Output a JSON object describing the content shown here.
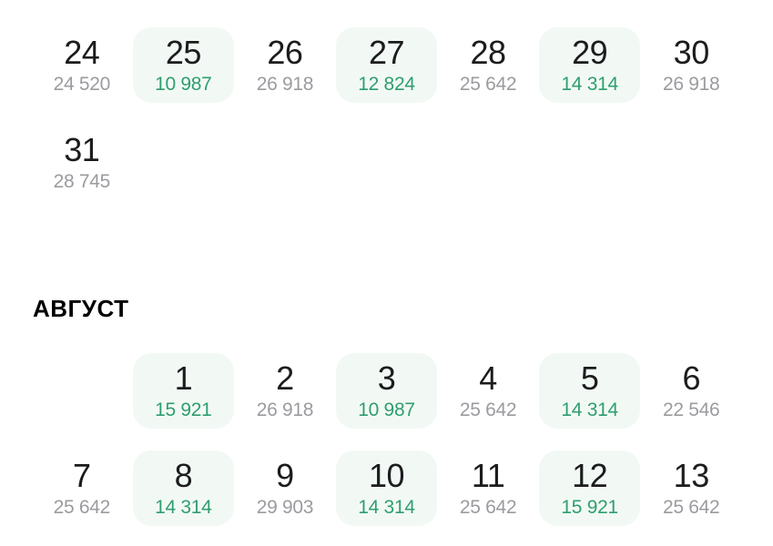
{
  "colors": {
    "background": "#ffffff",
    "day_number": "#1c1c1e",
    "price_normal": "#9b9ba0",
    "price_cheap": "#2f9e6e",
    "cheap_cell_bg": "#f2f9f5",
    "month_header": "#000000"
  },
  "calendar": {
    "months": [
      {
        "header": null,
        "weeks": [
          [
            {
              "day": "24",
              "price": "24 520",
              "cheap": false
            },
            {
              "day": "25",
              "price": "10 987",
              "cheap": true
            },
            {
              "day": "26",
              "price": "26 918",
              "cheap": false
            },
            {
              "day": "27",
              "price": "12 824",
              "cheap": true
            },
            {
              "day": "28",
              "price": "25 642",
              "cheap": false
            },
            {
              "day": "29",
              "price": "14 314",
              "cheap": true
            },
            {
              "day": "30",
              "price": "26 918",
              "cheap": false
            }
          ],
          [
            {
              "day": "31",
              "price": "28 745",
              "cheap": false
            },
            null,
            null,
            null,
            null,
            null,
            null
          ]
        ]
      },
      {
        "header": "АВГУСТ",
        "weeks": [
          [
            null,
            {
              "day": "1",
              "price": "15 921",
              "cheap": true
            },
            {
              "day": "2",
              "price": "26 918",
              "cheap": false
            },
            {
              "day": "3",
              "price": "10 987",
              "cheap": true
            },
            {
              "day": "4",
              "price": "25 642",
              "cheap": false
            },
            {
              "day": "5",
              "price": "14 314",
              "cheap": true
            },
            {
              "day": "6",
              "price": "22 546",
              "cheap": false
            }
          ],
          [
            {
              "day": "7",
              "price": "25 642",
              "cheap": false
            },
            {
              "day": "8",
              "price": "14 314",
              "cheap": true
            },
            {
              "day": "9",
              "price": "29 903",
              "cheap": false
            },
            {
              "day": "10",
              "price": "14 314",
              "cheap": true
            },
            {
              "day": "11",
              "price": "25 642",
              "cheap": false
            },
            {
              "day": "12",
              "price": "15 921",
              "cheap": true
            },
            {
              "day": "13",
              "price": "25 642",
              "cheap": false
            }
          ]
        ]
      }
    ]
  }
}
